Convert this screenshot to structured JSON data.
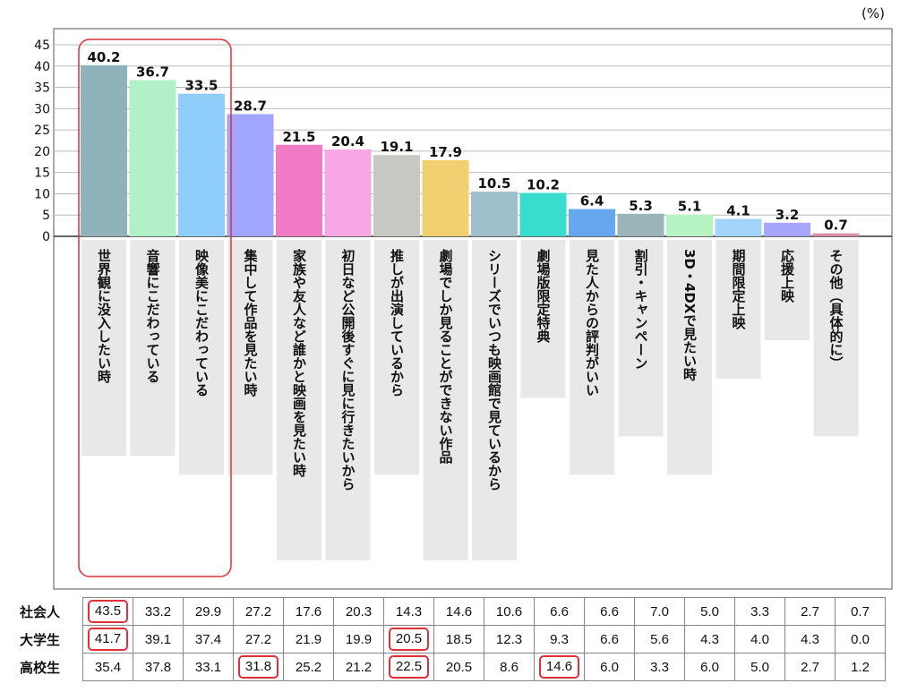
{
  "unit_label": "(%)",
  "chart_data": {
    "type": "bar",
    "ylim": [
      0,
      45
    ],
    "yticks": [
      0,
      5,
      10,
      15,
      20,
      25,
      30,
      35,
      40,
      45
    ],
    "grid": true,
    "categories": [
      "世界観に没入したい時",
      "音響にこだわっている",
      "映像美にこだわっている",
      "集中して作品を見たい時",
      "家族や友人など誰かと映画を見たい時",
      "初日など公開後すぐに見に行きたいから",
      "推しが出演しているから",
      "劇場でしか見ることができない作品",
      "シリーズでいつも映画館で見ているから",
      "劇場版限定特典",
      "見た人からの評判がいい",
      "割引・キャンペーン",
      "3D・4DXで見たい時",
      "期間限定上映",
      "応援上映",
      "その他（具体的に）"
    ],
    "values": [
      40.2,
      36.7,
      33.5,
      28.7,
      21.5,
      20.4,
      19.1,
      17.9,
      10.5,
      10.2,
      6.4,
      5.3,
      5.1,
      4.1,
      3.2,
      0.7
    ],
    "value_labels": [
      "40.2",
      "36.7",
      "33.5",
      "28.7",
      "21.5",
      "20.4",
      "19.1",
      "17.9",
      "10.5",
      "10.2",
      "6.4",
      "5.3",
      "5.1",
      "4.1",
      "3.2",
      "0.7"
    ],
    "colors": [
      "#8fb2bb",
      "#b2f0c8",
      "#8fcdfb",
      "#9fa6fb",
      "#f07ac6",
      "#f7a6e6",
      "#c8c8c4",
      "#f0d070",
      "#9fbfcb",
      "#38ddd0",
      "#66a8f0",
      "#9ab4b7",
      "#b8f3c4",
      "#a3d5fb",
      "#a8a6fc",
      "#d98ea6"
    ],
    "highlight_group": [
      0,
      1,
      2
    ],
    "breakdown": {
      "rows": [
        {
          "label": "社会人",
          "values": [
            "43.5",
            "33.2",
            "29.9",
            "27.2",
            "17.6",
            "20.3",
            "14.3",
            "14.6",
            "10.6",
            "6.6",
            "6.6",
            "7.0",
            "5.0",
            "3.3",
            "2.7",
            "0.7"
          ],
          "highlight": [
            0
          ]
        },
        {
          "label": "大学生",
          "values": [
            "41.7",
            "39.1",
            "37.4",
            "27.2",
            "21.9",
            "19.9",
            "20.5",
            "18.5",
            "12.3",
            "9.3",
            "6.6",
            "5.6",
            "4.3",
            "4.0",
            "4.3",
            "0.0"
          ],
          "highlight": [
            0,
            6
          ]
        },
        {
          "label": "高校生",
          "values": [
            "35.4",
            "37.8",
            "33.1",
            "31.8",
            "25.2",
            "21.2",
            "22.5",
            "20.5",
            "8.6",
            "14.6",
            "6.0",
            "3.3",
            "6.0",
            "5.0",
            "2.7",
            "1.2"
          ],
          "highlight": [
            3,
            6,
            9
          ]
        }
      ]
    }
  }
}
